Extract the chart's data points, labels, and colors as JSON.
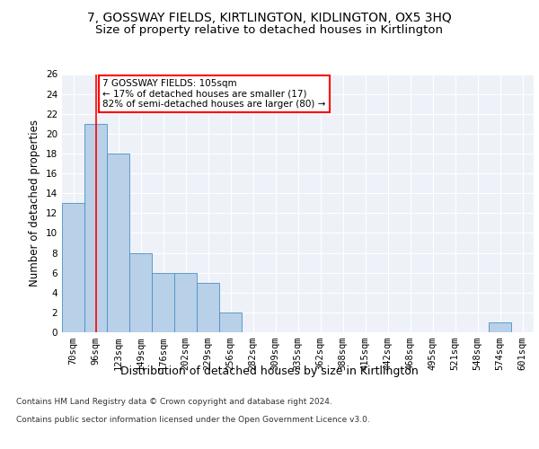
{
  "title": "7, GOSSWAY FIELDS, KIRTLINGTON, KIDLINGTON, OX5 3HQ",
  "subtitle": "Size of property relative to detached houses in Kirtlington",
  "xlabel": "Distribution of detached houses by size in Kirtlington",
  "ylabel": "Number of detached properties",
  "categories": [
    "70sqm",
    "96sqm",
    "123sqm",
    "149sqm",
    "176sqm",
    "202sqm",
    "229sqm",
    "256sqm",
    "282sqm",
    "309sqm",
    "335sqm",
    "362sqm",
    "388sqm",
    "415sqm",
    "442sqm",
    "468sqm",
    "495sqm",
    "521sqm",
    "548sqm",
    "574sqm",
    "601sqm"
  ],
  "values": [
    13,
    21,
    18,
    8,
    6,
    6,
    5,
    2,
    0,
    0,
    0,
    0,
    0,
    0,
    0,
    0,
    0,
    0,
    0,
    1,
    0
  ],
  "bar_color": "#b8d0e8",
  "bar_edge_color": "#4a90c4",
  "annotation_line1": "7 GOSSWAY FIELDS: 105sqm",
  "annotation_line2": "← 17% of detached houses are smaller (17)",
  "annotation_line3": "82% of semi-detached houses are larger (80) →",
  "red_line_x": 1.0,
  "ylim": [
    0,
    26
  ],
  "yticks": [
    0,
    2,
    4,
    6,
    8,
    10,
    12,
    14,
    16,
    18,
    20,
    22,
    24,
    26
  ],
  "footer_line1": "Contains HM Land Registry data © Crown copyright and database right 2024.",
  "footer_line2": "Contains public sector information licensed under the Open Government Licence v3.0.",
  "background_color": "#eef2f8",
  "grid_color": "#ffffff",
  "title_fontsize": 10,
  "subtitle_fontsize": 9.5,
  "tick_fontsize": 7.5,
  "ylabel_fontsize": 8.5,
  "xlabel_fontsize": 9,
  "footer_fontsize": 6.5
}
